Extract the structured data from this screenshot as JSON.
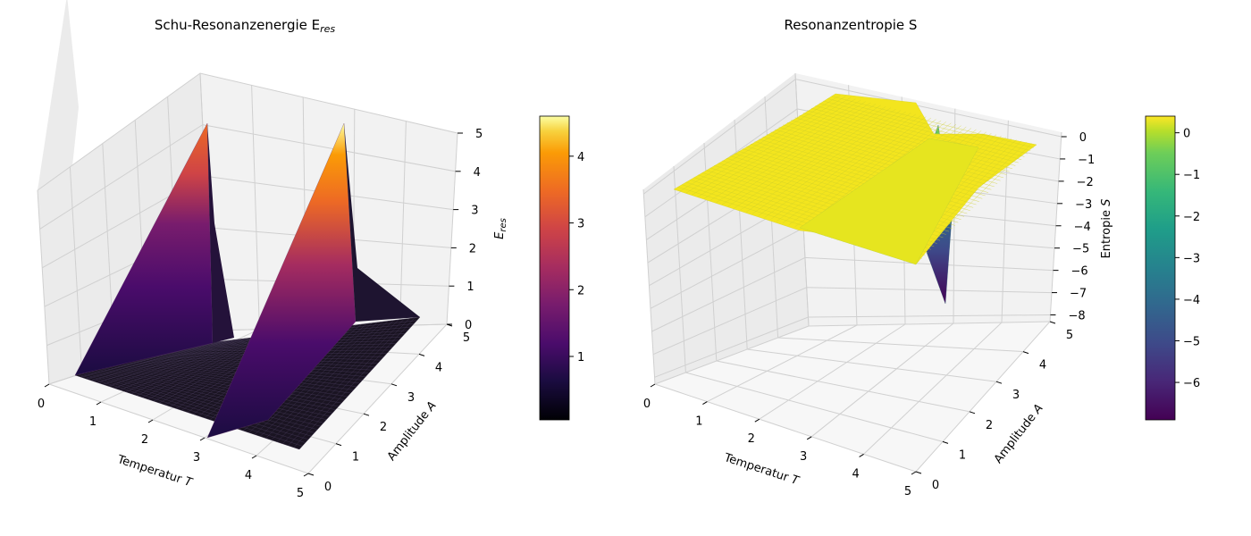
{
  "chart_data": [
    {
      "type": "surface3d",
      "title": "Schu-Resonanzenergie E",
      "title_sub": "res",
      "xlabel": "Temperatur T",
      "ylabel": "Amplitude A",
      "zlabel": "E",
      "zlabel_sub": "res",
      "x_ticks": [
        "0",
        "1",
        "2",
        "3",
        "4",
        "5"
      ],
      "y_ticks": [
        "0",
        "1",
        "2",
        "3",
        "4",
        "5"
      ],
      "z_ticks": [
        "0",
        "1",
        "2",
        "3",
        "4",
        "5"
      ],
      "xlim": [
        0,
        5
      ],
      "ylim": [
        0,
        5
      ],
      "zlim": [
        0,
        5
      ],
      "colormap": "inferno",
      "colorbar_ticks": [
        "1",
        "2",
        "3",
        "4"
      ],
      "colorbar_range": [
        0.05,
        4.6
      ],
      "grid": true,
      "surface_description_values": {
        "ridge_near_T": [
          0,
          3
        ],
        "ridge_peak_E": [
          4.6,
          5.0
        ],
        "baseline_E": 0.05
      }
    },
    {
      "type": "surface3d",
      "title": "Resonanzentropie S",
      "xlabel": "Temperatur T",
      "ylabel": "Amplitude A",
      "zlabel": "Entropie S",
      "x_ticks": [
        "0",
        "1",
        "2",
        "3",
        "4",
        "5"
      ],
      "y_ticks": [
        "0",
        "1",
        "2",
        "3",
        "4",
        "5"
      ],
      "z_ticks": [
        "−8",
        "−7",
        "−6",
        "−5",
        "−4",
        "−3",
        "−2",
        "−1",
        "0"
      ],
      "xlim": [
        0,
        5
      ],
      "ylim": [
        0,
        5
      ],
      "zlim": [
        -8,
        0.5
      ],
      "colormap": "viridis",
      "colorbar_ticks": [
        "0",
        "−1",
        "−2",
        "−3",
        "−4",
        "−5",
        "−6"
      ],
      "colorbar_range": [
        -6.9,
        0.4
      ],
      "grid": true,
      "surface_description_values": {
        "plateau_S": 0.3,
        "dip_near_T": 3,
        "dip_min_S": -6.9
      }
    }
  ]
}
